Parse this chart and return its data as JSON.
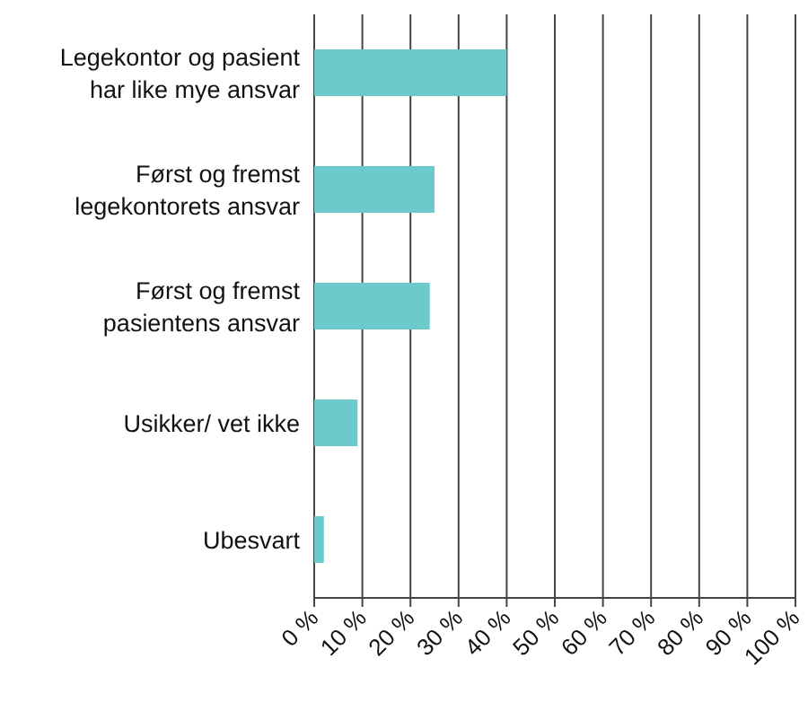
{
  "chart_data": {
    "type": "bar",
    "orientation": "horizontal",
    "categories": [
      "Legekontor og pasient har like mye ansvar",
      "Først og fremst legekontorets ansvar",
      "Først og fremst pasientens ansvar",
      "Usikker/ vet ikke",
      "Ubesvart"
    ],
    "values": [
      40,
      25,
      24,
      9,
      2
    ],
    "color": "#6cc9cc",
    "xlim": [
      0,
      100
    ],
    "xticks": [
      {
        "value": 0,
        "label": "0 %"
      },
      {
        "value": 10,
        "label": "10 %"
      },
      {
        "value": 20,
        "label": "20 %"
      },
      {
        "value": 30,
        "label": "30 %"
      },
      {
        "value": 40,
        "label": "40 %"
      },
      {
        "value": 50,
        "label": "50 %"
      },
      {
        "value": 60,
        "label": "60 %"
      },
      {
        "value": 70,
        "label": "70 %"
      },
      {
        "value": 80,
        "label": "80 %"
      },
      {
        "value": 90,
        "label": "90 %"
      },
      {
        "value": 100,
        "label": "100 %"
      }
    ],
    "grid": "x"
  }
}
